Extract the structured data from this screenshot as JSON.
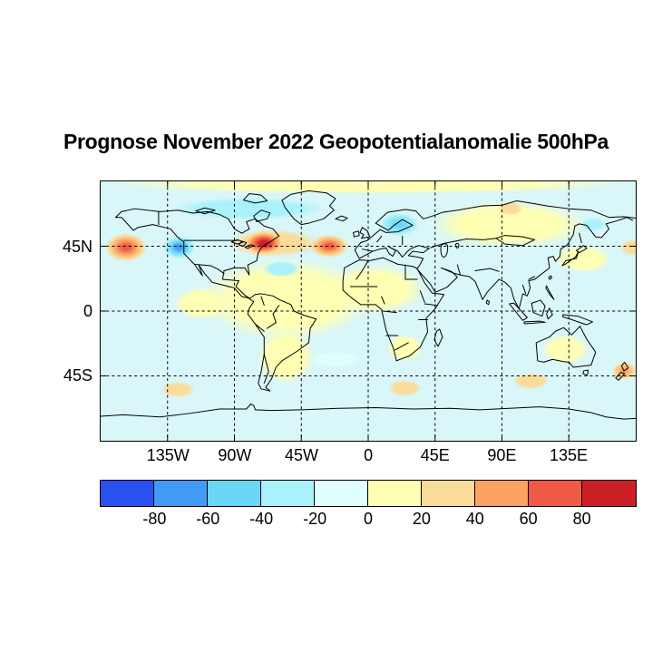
{
  "title": "Prognose November 2022 Geopotentialanomalie 500hPa",
  "map": {
    "extent": {
      "lon_min": -180,
      "lon_max": 180,
      "lat_min": -90,
      "lat_max": 90
    },
    "x_ticks": [
      {
        "label": "135W",
        "lon": -135
      },
      {
        "label": "90W",
        "lon": -90
      },
      {
        "label": "45W",
        "lon": -45
      },
      {
        "label": "0",
        "lon": 0
      },
      {
        "label": "45E",
        "lon": 45
      },
      {
        "label": "90E",
        "lon": 90
      },
      {
        "label": "135E",
        "lon": 135
      }
    ],
    "y_ticks": [
      {
        "label": "45N",
        "lat": 45
      },
      {
        "label": "0",
        "lat": 0
      },
      {
        "label": "45S",
        "lat": -45
      }
    ]
  },
  "colorbar": {
    "tick_labels": [
      "-80",
      "-60",
      "-40",
      "-20",
      "0",
      "20",
      "40",
      "60",
      "80"
    ],
    "segment_bounds": [
      -100,
      -80,
      -60,
      -40,
      -20,
      0,
      20,
      40,
      60,
      80,
      100
    ],
    "segment_colors": [
      "#2B50F0",
      "#419BF5",
      "#6BD5F6",
      "#A9F2FB",
      "#E0FEFE",
      "#FFFFB4",
      "#FADC9A",
      "#FCA363",
      "#EE5A45",
      "#CB2026"
    ]
  },
  "chart_data": {
    "type": "heatmap",
    "title": "Prognose November 2022 Geopotentialanomalie 500hPa",
    "projection": "equirectangular",
    "grid": "dashed, every 45 degrees",
    "legend_position": "bottom colorbar",
    "base_value": -8,
    "base_color": "#D9F6F8",
    "anomaly_centers": [
      {
        "name": "north-pacific-ridge",
        "lon": -163,
        "lat": 44,
        "rx": 14,
        "ry": 10,
        "value": 70
      },
      {
        "name": "gulf-of-alaska-trough",
        "lon": -127,
        "lat": 44,
        "rx": 11,
        "ry": 8,
        "value": -65
      },
      {
        "name": "east-canada-ridge",
        "lon": -70,
        "lat": 47,
        "rx": 15,
        "ry": 9,
        "value": 82
      },
      {
        "name": "north-atlantic-ridge",
        "lon": -26,
        "lat": 45,
        "rx": 13,
        "ry": 8,
        "value": 78
      },
      {
        "name": "scandinavia-trough",
        "lon": 21,
        "lat": 60,
        "rx": 13,
        "ry": 8,
        "value": -45
      },
      {
        "name": "west-atlantic-trough",
        "lon": -58,
        "lat": 29,
        "rx": 13,
        "ry": 6,
        "value": -25
      },
      {
        "name": "east-siberia-trough",
        "lon": 152,
        "lat": 60,
        "rx": 9,
        "ry": 5,
        "value": -35
      },
      {
        "name": "taymyr-ridge",
        "lon": 96,
        "lat": 71,
        "rx": 9,
        "ry": 5,
        "value": 30
      },
      {
        "name": "bering-ridge",
        "lon": 178,
        "lat": 44,
        "rx": 8,
        "ry": 6,
        "value": 35
      },
      {
        "name": "new-zealand-ridge",
        "lon": 173,
        "lat": -42,
        "rx": 8,
        "ry": 6,
        "value": 45
      },
      {
        "name": "south-australia-ridge",
        "lon": 110,
        "lat": -49,
        "rx": 13,
        "ry": 6,
        "value": 28
      },
      {
        "name": "south-africa-ridge",
        "lon": 25,
        "lat": -54,
        "rx": 12,
        "ry": 6,
        "value": 28
      },
      {
        "name": "southeast-pacific-ridge",
        "lon": -128,
        "lat": -55,
        "rx": 12,
        "ry": 6,
        "value": 26
      },
      {
        "name": "south-atlantic-trough",
        "lon": -22,
        "lat": -34,
        "rx": 18,
        "ry": 6,
        "value": -15
      },
      {
        "name": "mid-latitude-ridge-band",
        "lon": -63,
        "lat": 47,
        "rx": 32,
        "ry": 10,
        "value": 25
      },
      {
        "name": "arctic-canada-trough-band",
        "lon": -80,
        "lat": 71,
        "rx": 55,
        "ry": 8,
        "value": -22
      }
    ],
    "background_regions": [
      {
        "name": "tropics-americas-atlantic-ridge",
        "lon": -55,
        "lat": 8,
        "rx": 60,
        "ry": 30,
        "value": 10
      },
      {
        "name": "east-pacific-tropics-ridge",
        "lon": -112,
        "lat": 5,
        "rx": 20,
        "ry": 12,
        "value": 8
      },
      {
        "name": "south-america-ridge",
        "lon": -55,
        "lat": -32,
        "rx": 20,
        "ry": 20,
        "value": 10
      },
      {
        "name": "africa-north-ridge",
        "lon": 5,
        "lat": 15,
        "rx": 35,
        "ry": 18,
        "value": 10
      },
      {
        "name": "south-africa-land-ridge",
        "lon": 25,
        "lat": -26,
        "rx": 13,
        "ry": 10,
        "value": 10
      },
      {
        "name": "siberia-ridge",
        "lon": 95,
        "lat": 60,
        "rx": 55,
        "ry": 17,
        "value": 10
      },
      {
        "name": "northwest-pacific-ridge",
        "lon": 145,
        "lat": 36,
        "rx": 20,
        "ry": 10,
        "value": 10
      },
      {
        "name": "australia-ridge",
        "lon": 133,
        "lat": -27,
        "rx": 17,
        "ry": 11,
        "value": 10
      },
      {
        "name": "arctic-ridge-band",
        "lon": 0,
        "lat": 88,
        "rx": 180,
        "ry": 7,
        "value": 8
      }
    ]
  }
}
